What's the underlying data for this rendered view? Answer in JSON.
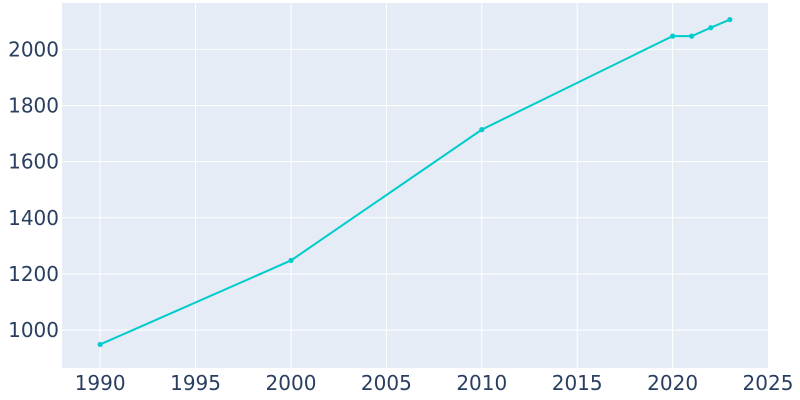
{
  "chart_data": {
    "type": "line",
    "title": "",
    "xlabel": "",
    "ylabel": "",
    "xlim": [
      1988,
      2025
    ],
    "ylim": [
      865,
      2165
    ],
    "x_ticks": [
      1990,
      1995,
      2000,
      2005,
      2010,
      2015,
      2020,
      2025
    ],
    "y_ticks": [
      1000,
      1200,
      1400,
      1600,
      1800,
      2000
    ],
    "grid": true,
    "legend": "none",
    "series": [
      {
        "color": "#00cccc",
        "x": [
          1990,
          2000,
          2010,
          2020,
          2021,
          2022,
          2023
        ],
        "y": [
          949,
          1248,
          1714,
          2047,
          2047,
          2077,
          2106
        ]
      }
    ]
  },
  "colors": {
    "plot_background": "#e5ecf6",
    "grid": "#ffffff",
    "tick_text": "#2a3f5f",
    "series": "#00cccc"
  }
}
